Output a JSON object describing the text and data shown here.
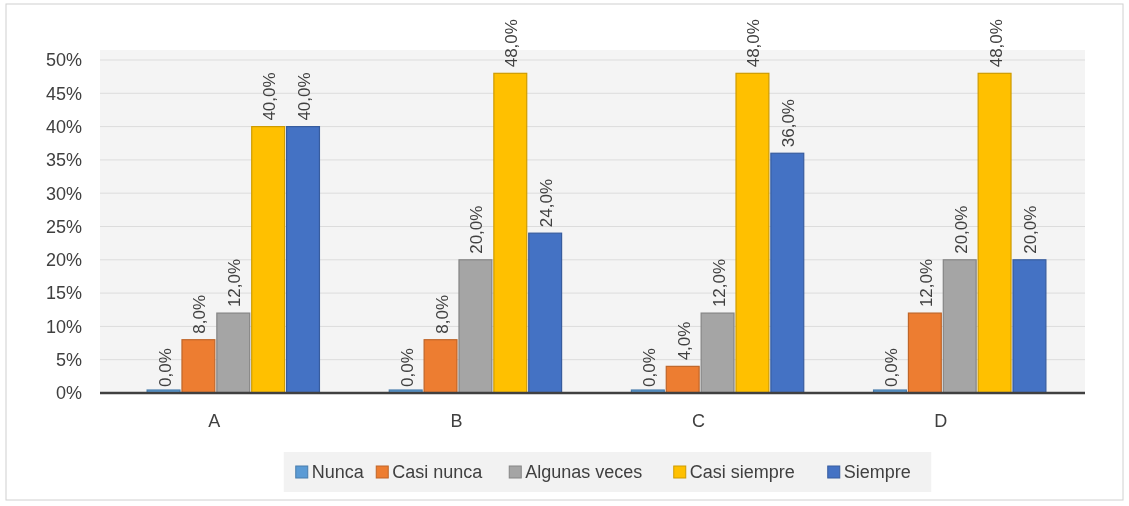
{
  "chart_data": {
    "type": "bar",
    "categories": [
      "A",
      "B",
      "C",
      "D"
    ],
    "series": [
      {
        "name": "Nunca",
        "color": "#5b9bd5",
        "values": [
          0,
          0,
          0,
          0
        ],
        "value_labels": [
          "0,0%",
          "0,0%",
          "0,0%",
          "0,0%"
        ]
      },
      {
        "name": "Casi nunca",
        "color": "#ed7d31",
        "values": [
          8,
          8,
          4,
          12
        ],
        "value_labels": [
          "8,0%",
          "8,0%",
          "4,0%",
          "12,0%"
        ]
      },
      {
        "name": "Algunas veces",
        "color": "#a5a5a5",
        "values": [
          12,
          20,
          12,
          20
        ],
        "value_labels": [
          "12,0%",
          "20,0%",
          "12,0%",
          "20,0%"
        ]
      },
      {
        "name": "Casi siempre",
        "color": "#ffc000",
        "values": [
          40,
          48,
          48,
          48
        ],
        "value_labels": [
          "40,0%",
          "48,0%",
          "48,0%",
          "48,0%"
        ]
      },
      {
        "name": "Siempre",
        "color": "#4472c4",
        "values": [
          40,
          24,
          36,
          20
        ],
        "value_labels": [
          "40,0%",
          "24,0%",
          "36,0%",
          "20,0%"
        ]
      }
    ],
    "ylim": [
      0,
      50
    ],
    "yticks": [
      {
        "value": 0,
        "label": "0%"
      },
      {
        "value": 5,
        "label": "5%"
      },
      {
        "value": 10,
        "label": "10%"
      },
      {
        "value": 15,
        "label": "15%"
      },
      {
        "value": 20,
        "label": "20%"
      },
      {
        "value": 25,
        "label": "25%"
      },
      {
        "value": 30,
        "label": "30%"
      },
      {
        "value": 35,
        "label": "35%"
      },
      {
        "value": 40,
        "label": "40%"
      },
      {
        "value": 45,
        "label": "45%"
      },
      {
        "value": 50,
        "label": "50%"
      }
    ],
    "grid": "y",
    "legend": "bottom"
  }
}
